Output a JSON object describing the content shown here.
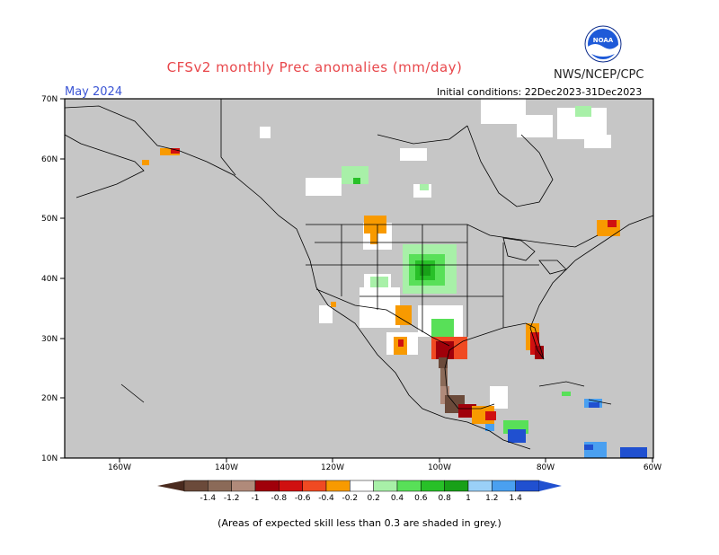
{
  "header": {
    "title": "CFSv2 monthly Prec anomalies (mm/day)",
    "agency": "NWS/NCEP/CPC",
    "month": "May 2024",
    "initial_conditions": "Initial conditions: 22Dec2023-31Dec2023"
  },
  "axes": {
    "lat_labels": [
      "70N",
      "60N",
      "50N",
      "40N",
      "30N",
      "20N",
      "10N"
    ],
    "lon_labels": [
      "160W",
      "140W",
      "120W",
      "100W",
      "80W",
      "60W"
    ]
  },
  "colorbar": {
    "labels": [
      "-1.4",
      "-1.2",
      "-1",
      "-0.8",
      "-0.6",
      "-0.4",
      "-0.2",
      "0.2",
      "0.4",
      "0.6",
      "0.8",
      "1",
      "1.2",
      "1.4"
    ],
    "colors": [
      "#6b4a3a",
      "#8b6a58",
      "#b08a7a",
      "#a0000a",
      "#d01010",
      "#f04a22",
      "#f89a00",
      "#ffffff",
      "#a8f0a8",
      "#58e058",
      "#28c028",
      "#18a018",
      "#9ad0f8",
      "#4aa0f0",
      "#2050d0"
    ]
  },
  "colors": {
    "grey_mask": "#c6c6c6",
    "title_red": "#e8474b",
    "month_blue": "#3b55d4"
  },
  "footnote": "(Areas of expected skill less than 0.3 are shaded in grey.)"
}
